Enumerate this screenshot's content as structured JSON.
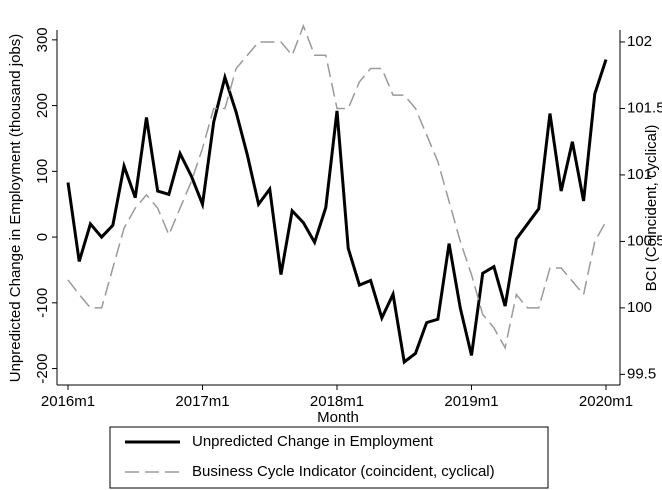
{
  "chart_data": {
    "type": "line",
    "x_label": "Month",
    "y_label": "Unpredicted Change in Employment (thousand jobs)",
    "y2_label": "BCI (Coincident, cyclical)",
    "categories": [
      "2016m1",
      null,
      null,
      null,
      null,
      null,
      null,
      null,
      null,
      null,
      null,
      null,
      "2017m1",
      null,
      null,
      null,
      null,
      null,
      null,
      null,
      null,
      null,
      null,
      null,
      "2018m1",
      null,
      null,
      null,
      null,
      null,
      null,
      null,
      null,
      null,
      null,
      null,
      "2019m1",
      null,
      null,
      null,
      null,
      null,
      null,
      null,
      null,
      null,
      null,
      null,
      "2020m1"
    ],
    "series": [
      {
        "name": "Unpredicted Change in Employment",
        "color": "#000000",
        "dash": "solid",
        "axis": "y",
        "values": [
          83,
          -37,
          20,
          0,
          18,
          108,
          60,
          182,
          70,
          65,
          127,
          93,
          50,
          175,
          243,
          190,
          125,
          50,
          73,
          -57,
          40,
          22,
          -8,
          45,
          192,
          -17,
          -73,
          -66,
          -123,
          -87,
          -190,
          -177,
          -130,
          -125,
          -10,
          -108,
          -180,
          -55,
          -45,
          -105,
          -3,
          20,
          43,
          188,
          70,
          145,
          55,
          218,
          270
        ]
      },
      {
        "name": "Business Cycle Indicator (coincident, cyclical)",
        "color": "#9a9a9a",
        "dash": "dashed",
        "axis": "y2",
        "values": [
          100.21,
          100.1,
          100.0,
          100.0,
          100.3,
          100.6,
          100.75,
          100.85,
          100.75,
          100.55,
          100.75,
          100.95,
          101.2,
          101.5,
          101.5,
          101.8,
          101.9,
          102.0,
          102.0,
          102.0,
          101.9,
          102.12,
          101.9,
          101.9,
          101.5,
          101.5,
          101.7,
          101.8,
          101.8,
          101.6,
          101.6,
          101.5,
          101.3,
          101.1,
          100.8,
          100.5,
          100.25,
          99.95,
          99.85,
          99.7,
          100.1,
          100.0,
          100.0,
          100.3,
          100.3,
          100.2,
          100.1,
          100.5,
          100.65
        ]
      }
    ],
    "ylim": [
      -225,
      315
    ],
    "yticks": [
      -200,
      -100,
      0,
      100,
      200,
      300
    ],
    "y2lim": [
      99.42,
      102.09
    ],
    "y2ticks": [
      99.5,
      100,
      100.5,
      101,
      101.5,
      102
    ]
  }
}
